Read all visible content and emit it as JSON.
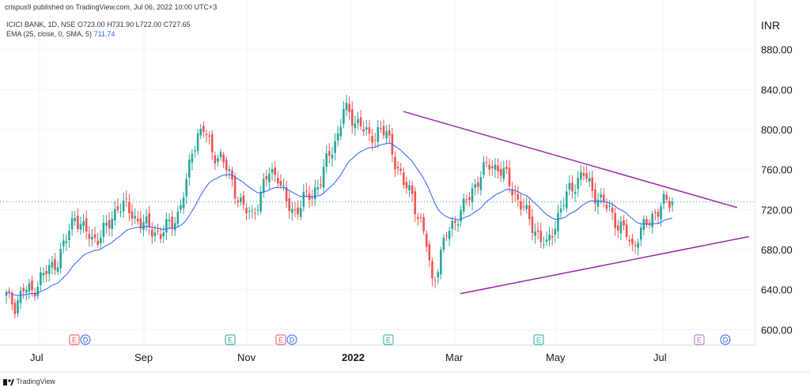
{
  "caption": "crispus9 published on TradingView.com, Jul 06, 2022 10:00 UTC+3",
  "legend": {
    "symbol": "ICICI BANK, 1D, NSE",
    "ohlc": "O723.00 H731.90 L722.00 C727.65",
    "ema_label": "EMA (25, close, 0, SMA, 5)",
    "ema_value": "711.74"
  },
  "footer": "TradingView",
  "currency": "INR",
  "colors": {
    "up": "#26a69a",
    "down": "#ef5350",
    "ema": "#2962ff",
    "trend": "#9c27b0",
    "grid": "#f0f3fa",
    "dotted": "#26a69a"
  },
  "chart_data": {
    "type": "candlestick",
    "symbol": "ICICI BANK",
    "interval": "1D",
    "exchange": "NSE",
    "yaxis": {
      "ticks": [
        600,
        640,
        680,
        720,
        760,
        800,
        840,
        880
      ],
      "ylim": [
        590,
        890
      ],
      "unit": "INR"
    },
    "xaxis": {
      "labels": [
        "Jul",
        "Sep",
        "Nov",
        "2022",
        "Mar",
        "May",
        "Jul"
      ]
    },
    "last_close": 727.65,
    "ema_last": 711.74,
    "events": [
      {
        "month": "Jul",
        "letters": [
          "E",
          "D"
        ]
      },
      {
        "month": "Oct",
        "letters": [
          "E"
        ]
      },
      {
        "month": "Dec",
        "letters": [
          "E",
          "D"
        ]
      },
      {
        "month": "Jan",
        "letters": [
          "E"
        ]
      },
      {
        "month": "Apr",
        "letters": [
          "E"
        ]
      },
      {
        "month": "Jul",
        "letters": [
          "E",
          "D"
        ]
      }
    ],
    "trendlines": [
      {
        "name": "upper",
        "from": 818,
        "to": 722
      },
      {
        "name": "lower",
        "from": 636,
        "to": 693
      }
    ],
    "close_path": [
      [
        0,
        633
      ],
      [
        3,
        625
      ],
      [
        6,
        640
      ],
      [
        9,
        638
      ],
      [
        12,
        652
      ],
      [
        15,
        660
      ],
      [
        18,
        670
      ],
      [
        21,
        690
      ],
      [
        24,
        715
      ],
      [
        27,
        700
      ],
      [
        30,
        690
      ],
      [
        33,
        695
      ],
      [
        36,
        705
      ],
      [
        39,
        725
      ],
      [
        42,
        722
      ],
      [
        45,
        712
      ],
      [
        48,
        705
      ],
      [
        51,
        700
      ],
      [
        54,
        695
      ],
      [
        57,
        705
      ],
      [
        60,
        715
      ],
      [
        63,
        745
      ],
      [
        65,
        780
      ],
      [
        67,
        795
      ],
      [
        69,
        800
      ],
      [
        72,
        778
      ],
      [
        75,
        772
      ],
      [
        78,
        755
      ],
      [
        80,
        740
      ],
      [
        83,
        720
      ],
      [
        86,
        715
      ],
      [
        89,
        735
      ],
      [
        92,
        758
      ],
      [
        95,
        755
      ],
      [
        98,
        725
      ],
      [
        101,
        718
      ],
      [
        104,
        730
      ],
      [
        107,
        735
      ],
      [
        110,
        750
      ],
      [
        113,
        775
      ],
      [
        116,
        795
      ],
      [
        118,
        820
      ],
      [
        121,
        812
      ],
      [
        124,
        805
      ],
      [
        127,
        790
      ],
      [
        130,
        800
      ],
      [
        133,
        795
      ],
      [
        136,
        770
      ],
      [
        139,
        745
      ],
      [
        142,
        735
      ],
      [
        145,
        705
      ],
      [
        147,
        685
      ],
      [
        149,
        648
      ],
      [
        151,
        665
      ],
      [
        154,
        695
      ],
      [
        157,
        710
      ],
      [
        160,
        722
      ],
      [
        163,
        740
      ],
      [
        166,
        755
      ],
      [
        169,
        765
      ],
      [
        172,
        762
      ],
      [
        175,
        752
      ],
      [
        178,
        735
      ],
      [
        181,
        720
      ],
      [
        184,
        705
      ],
      [
        187,
        690
      ],
      [
        189,
        682
      ],
      [
        191,
        700
      ],
      [
        194,
        720
      ],
      [
        197,
        740
      ],
      [
        200,
        750
      ],
      [
        202,
        755
      ],
      [
        205,
        740
      ],
      [
        208,
        728
      ],
      [
        211,
        720
      ],
      [
        214,
        705
      ],
      [
        217,
        695
      ],
      [
        219,
        682
      ],
      [
        221,
        695
      ],
      [
        224,
        705
      ],
      [
        227,
        718
      ],
      [
        230,
        726
      ],
      [
        233,
        727.65
      ]
    ]
  }
}
